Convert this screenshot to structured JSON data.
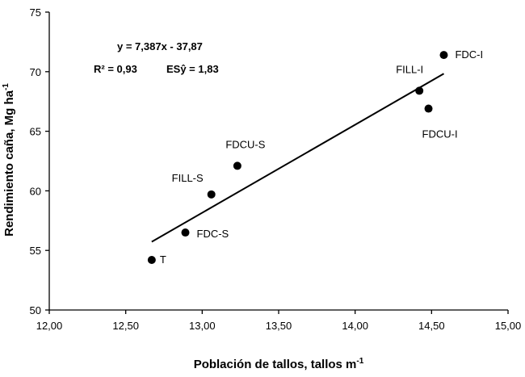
{
  "chart_data": {
    "type": "scatter",
    "title": "",
    "xlabel": "Población de tallos, tallos m",
    "xlabel_sup": "-1",
    "ylabel": "Rendimiento caña, Mg ha",
    "ylabel_sup": "-1",
    "xlim": [
      12.0,
      15.0
    ],
    "ylim": [
      50,
      75
    ],
    "x_ticks": [
      12.0,
      12.5,
      13.0,
      13.5,
      14.0,
      14.5,
      15.0
    ],
    "x_tick_labels": [
      "12,00",
      "12,50",
      "13,00",
      "13,50",
      "14,00",
      "14,50",
      "15,00"
    ],
    "y_ticks": [
      50,
      55,
      60,
      65,
      70,
      75
    ],
    "y_tick_labels": [
      "50",
      "55",
      "60",
      "65",
      "70",
      "75"
    ],
    "grid": false,
    "legend": "none",
    "points": [
      {
        "label": "T",
        "x": 12.67,
        "y": 54.2
      },
      {
        "label": "FDC-S",
        "x": 12.89,
        "y": 56.5
      },
      {
        "label": "FILL-S",
        "x": 13.06,
        "y": 59.7
      },
      {
        "label": "FDCU-S",
        "x": 13.23,
        "y": 62.1
      },
      {
        "label": "FILL-I",
        "x": 14.42,
        "y": 68.4
      },
      {
        "label": "FDCU-I",
        "x": 14.48,
        "y": 66.9
      },
      {
        "label": "FDC-I",
        "x": 14.58,
        "y": 71.4
      }
    ],
    "trendline": {
      "slope": 7.387,
      "intercept": -37.87,
      "x_range": [
        12.67,
        14.58
      ]
    },
    "annotations": {
      "equation": "y = 7,387x - 37,87",
      "r2": "R² = 0,93",
      "sey": "ESŷ = 1,83"
    },
    "colors": {
      "marker": "#000000",
      "line": "#000000",
      "axis": "#000000"
    }
  }
}
